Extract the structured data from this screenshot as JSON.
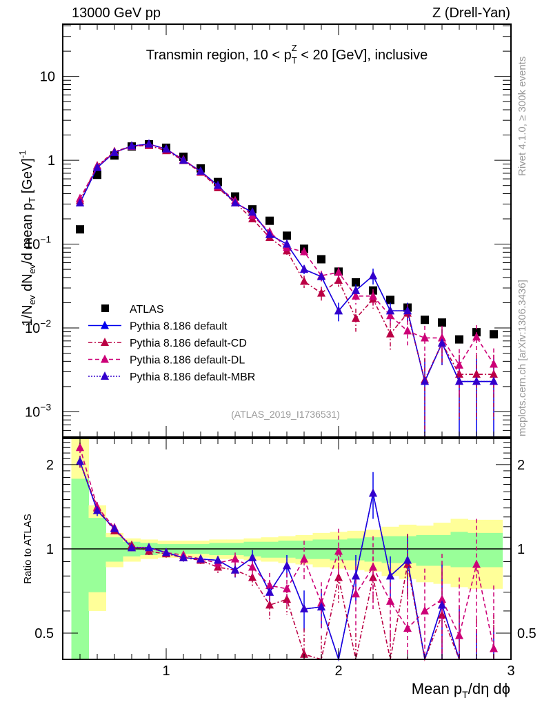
{
  "header": {
    "left": "13000 GeV pp",
    "right": "Z (Drell-Yan)"
  },
  "side_labels": {
    "top": "Rivet 4.1.0, ≥ 300k events",
    "bottom": "mcplots.cern.ch [arXiv:1306.3436]"
  },
  "chart_data": [
    {
      "type": "line",
      "panel": "main",
      "title": "Transmin region, 10 < p_T^Z < 20 [GeV], inclusive",
      "title_parts": {
        "pre": "Transmin region, 10 < p",
        "sub": "T",
        "sup": "Z",
        "post": " < 20 [GeV], inclusive"
      },
      "ylabel": "1/N_ev dN_ev/d mean p_T [GeV]^-1",
      "ylabel_parts": {
        "a": "1/N",
        "a_sub": "ev",
        "b": " dN",
        "b_sub": "ev",
        "c": "/d mean p",
        "c_sub": "T",
        "d": " [GeV]",
        "d_sup": "-1"
      },
      "xlabel": "",
      "yscale": "log",
      "xlim": [
        0.4,
        3.0
      ],
      "ylim": [
        0.0005,
        42
      ],
      "y_ticks": [
        {
          "value": 10,
          "label": "10",
          "exp": ""
        },
        {
          "value": 1,
          "label": "1",
          "exp": ""
        },
        {
          "value": 0.1,
          "label": "10",
          "exp": "−1"
        },
        {
          "value": 0.01,
          "label": "10",
          "exp": "−2"
        },
        {
          "value": 0.001,
          "label": "10",
          "exp": "−3"
        }
      ],
      "annotation": "(ATLAS_2019_I1736531)",
      "legend_position": "lower-left",
      "x": [
        0.5,
        0.6,
        0.7,
        0.8,
        0.9,
        1.0,
        1.1,
        1.2,
        1.3,
        1.4,
        1.5,
        1.6,
        1.7,
        1.8,
        1.9,
        2.0,
        2.1,
        2.2,
        2.3,
        2.4,
        2.5,
        2.6,
        2.7,
        2.8,
        2.9
      ],
      "series": [
        {
          "name": "ATLAS",
          "color": "#000000",
          "marker": "square",
          "line": "none",
          "values": [
            0.15,
            0.67,
            1.14,
            1.46,
            1.55,
            1.41,
            1.1,
            0.8,
            0.55,
            0.37,
            0.26,
            0.19,
            0.126,
            0.088,
            0.066,
            0.047,
            0.035,
            0.028,
            0.0216,
            0.0175,
            0.0125,
            0.0116,
            0.0073,
            0.0089,
            0.0084
          ]
        },
        {
          "name": "Pythia 8.186 default",
          "color": "#0000ee",
          "marker": "triangle",
          "line": "solid",
          "values": [
            0.31,
            0.82,
            1.24,
            1.48,
            1.56,
            1.36,
            1.0,
            0.74,
            0.5,
            0.31,
            0.24,
            0.13,
            0.1,
            0.05,
            0.041,
            0.016,
            0.028,
            0.042,
            0.016,
            0.016,
            0.0023,
            0.0066,
            0.0023,
            0.0023,
            0.0023
          ],
          "errors": [
            0.02,
            0.03,
            0.03,
            0.04,
            0.04,
            0.04,
            0.03,
            0.02,
            0.02,
            0.015,
            0.012,
            0.01,
            0.009,
            0.006,
            0.005,
            0.004,
            0.005,
            0.009,
            0.004,
            0.004,
            0.002,
            0.003,
            0.002,
            0.002,
            0.002
          ]
        },
        {
          "name": "Pythia 8.186 default-CD",
          "color": "#bb0044",
          "marker": "triangle",
          "line": "dashdot",
          "values": [
            0.33,
            0.86,
            1.27,
            1.47,
            1.5,
            1.3,
            0.99,
            0.72,
            0.47,
            0.31,
            0.2,
            0.12,
            0.083,
            0.036,
            0.026,
            0.037,
            0.013,
            0.022,
            0.0085,
            0.015,
            0.0024,
            0.0066,
            0.0028,
            0.0028,
            0.0028
          ],
          "errors": [
            0.02,
            0.03,
            0.03,
            0.04,
            0.04,
            0.04,
            0.03,
            0.02,
            0.02,
            0.015,
            0.012,
            0.01,
            0.009,
            0.006,
            0.005,
            0.006,
            0.004,
            0.005,
            0.003,
            0.004,
            0.002,
            0.003,
            0.002,
            0.002,
            0.002
          ]
        },
        {
          "name": "Pythia 8.186 default-DL",
          "color": "#cc0077",
          "marker": "triangle",
          "line": "dashed",
          "values": [
            0.35,
            0.84,
            1.25,
            1.46,
            1.55,
            1.36,
            1.02,
            0.73,
            0.49,
            0.33,
            0.22,
            0.14,
            0.091,
            0.081,
            0.042,
            0.046,
            0.024,
            0.024,
            0.014,
            0.0092,
            0.0076,
            0.0076,
            0.0036,
            0.0078,
            0.0037
          ],
          "errors": [
            0.02,
            0.03,
            0.03,
            0.04,
            0.04,
            0.04,
            0.03,
            0.02,
            0.02,
            0.015,
            0.012,
            0.01,
            0.009,
            0.008,
            0.006,
            0.007,
            0.005,
            0.005,
            0.004,
            0.003,
            0.003,
            0.003,
            0.002,
            0.003,
            0.002
          ]
        },
        {
          "name": "Pythia 8.186 default-MBR",
          "color": "#3300cc",
          "marker": "triangle",
          "line": "dotted",
          "values": [
            0.31,
            0.82,
            1.24,
            1.48,
            1.56,
            1.36,
            1.0,
            0.74,
            0.5,
            0.31,
            0.24,
            0.13,
            0.1,
            0.05,
            0.041,
            0.016,
            0.028,
            0.042,
            0.016,
            0.016,
            0.0023,
            0.0066,
            0.0023,
            0.0023,
            0.0023
          ]
        }
      ]
    },
    {
      "type": "line",
      "panel": "ratio",
      "ylabel": "Ratio to ATLAS",
      "xlabel": "Mean p_T/dη dϕ",
      "xlabel_parts": {
        "a": "Mean p",
        "a_sub": "T",
        "b": "/dη dϕ"
      },
      "yscale": "log",
      "xlim": [
        0.4,
        3.0
      ],
      "ylim": [
        0.403,
        2.48
      ],
      "x_ticks": [
        {
          "value": 1,
          "label": "1"
        },
        {
          "value": 2,
          "label": "2"
        },
        {
          "value": 3,
          "label": "3"
        }
      ],
      "y_ticks": [
        {
          "value": 2,
          "label": "2"
        },
        {
          "value": 1,
          "label": "1"
        },
        {
          "value": 0.5,
          "label": "0.5"
        }
      ],
      "band_colors": {
        "inner": "#99ff99",
        "outer": "#ffff99"
      },
      "x": [
        0.5,
        0.6,
        0.7,
        0.8,
        0.9,
        1.0,
        1.1,
        1.2,
        1.3,
        1.4,
        1.5,
        1.6,
        1.7,
        1.8,
        1.9,
        2.0,
        2.1,
        2.2,
        2.3,
        2.4,
        2.5,
        2.6,
        2.7,
        2.8,
        2.9
      ],
      "bands": {
        "inner_low": [
          0.3,
          0.7,
          0.9,
          0.94,
          0.95,
          0.96,
          0.96,
          0.96,
          0.95,
          0.95,
          0.94,
          0.93,
          0.93,
          0.92,
          0.92,
          0.91,
          0.91,
          0.9,
          0.89,
          0.89,
          0.87,
          0.87,
          0.86,
          0.86,
          0.86
        ],
        "inner_high": [
          1.78,
          1.29,
          1.1,
          1.06,
          1.05,
          1.04,
          1.04,
          1.04,
          1.05,
          1.05,
          1.06,
          1.06,
          1.07,
          1.07,
          1.08,
          1.08,
          1.09,
          1.1,
          1.11,
          1.11,
          1.12,
          1.12,
          1.15,
          1.14,
          1.14
        ],
        "outer_low": [
          0.3,
          0.6,
          0.86,
          0.9,
          0.92,
          0.93,
          0.93,
          0.93,
          0.92,
          0.92,
          0.91,
          0.9,
          0.89,
          0.88,
          0.86,
          0.85,
          0.84,
          0.83,
          0.8,
          0.78,
          0.76,
          0.75,
          0.73,
          0.72,
          0.72
        ],
        "outer_high": [
          2.48,
          1.43,
          1.14,
          1.09,
          1.08,
          1.07,
          1.07,
          1.07,
          1.08,
          1.08,
          1.09,
          1.1,
          1.11,
          1.12,
          1.14,
          1.15,
          1.16,
          1.17,
          1.2,
          1.22,
          1.21,
          1.24,
          1.28,
          1.27,
          1.27
        ]
      },
      "series": [
        {
          "name": "Pythia 8.186 default",
          "color": "#0000ee",
          "line": "solid",
          "values": [
            2.05,
            1.37,
            1.18,
            1.01,
            1.01,
            0.97,
            0.93,
            0.92,
            0.91,
            0.84,
            0.93,
            0.7,
            0.87,
            0.61,
            0.62,
            0.34,
            0.8,
            1.58,
            0.8,
            0.91,
            0.18,
            0.63,
            0.31,
            0.26,
            0.27
          ],
          "errors": [
            0.1,
            0.06,
            0.04,
            0.03,
            0.03,
            0.03,
            0.03,
            0.03,
            0.03,
            0.05,
            0.06,
            0.07,
            0.08,
            0.1,
            0.1,
            0.09,
            0.15,
            0.3,
            0.14,
            0.22,
            0.15,
            0.25,
            0.3,
            0.25,
            0.25
          ]
        },
        {
          "name": "Pythia 8.186 default-CD",
          "color": "#bb0044",
          "line": "dashdot",
          "values": [
            2.05,
            1.4,
            1.16,
            1.03,
            0.98,
            0.96,
            0.93,
            0.91,
            0.86,
            0.84,
            0.79,
            0.63,
            0.66,
            0.42,
            0.39,
            0.79,
            0.38,
            0.79,
            0.39,
            0.88,
            0.19,
            0.58,
            0.38,
            0.31,
            0.33
          ],
          "errors": [
            0.1,
            0.06,
            0.04,
            0.03,
            0.03,
            0.03,
            0.03,
            0.03,
            0.04,
            0.05,
            0.06,
            0.07,
            0.08,
            0.1,
            0.1,
            0.15,
            0.12,
            0.15,
            0.15,
            0.25,
            0.15,
            0.25,
            0.25,
            0.25,
            0.25
          ]
        },
        {
          "name": "Pythia 8.186 default-DL",
          "color": "#cc0077",
          "line": "dashed",
          "values": [
            2.3,
            1.41,
            1.19,
            1.01,
            1.01,
            0.97,
            0.95,
            0.92,
            0.89,
            0.92,
            0.86,
            0.74,
            0.72,
            0.92,
            0.64,
            0.98,
            0.69,
            0.86,
            0.65,
            0.52,
            0.6,
            0.66,
            0.49,
            0.88,
            0.44
          ],
          "errors": [
            0.1,
            0.06,
            0.04,
            0.03,
            0.03,
            0.03,
            0.03,
            0.03,
            0.04,
            0.05,
            0.06,
            0.08,
            0.1,
            0.15,
            0.12,
            0.2,
            0.18,
            0.25,
            0.2,
            0.25,
            0.25,
            0.3,
            0.3,
            0.4,
            0.3
          ]
        },
        {
          "name": "Pythia 8.186 default-MBR",
          "color": "#3300cc",
          "line": "dotted",
          "values": [
            2.05,
            1.37,
            1.18,
            1.01,
            1.01,
            0.97,
            0.93,
            0.92,
            0.91,
            0.84,
            0.93,
            0.7,
            0.87,
            0.61,
            0.62,
            0.34,
            0.8,
            1.58,
            0.8,
            0.91,
            0.18,
            0.63,
            0.31,
            0.26,
            0.27
          ]
        }
      ]
    }
  ]
}
